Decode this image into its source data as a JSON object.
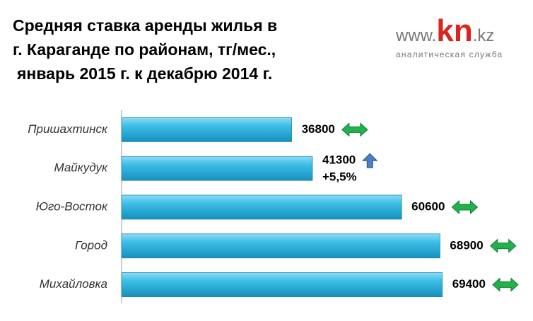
{
  "chart_data": {
    "type": "hbar",
    "title": [
      "Средняя ставка аренды жилья в",
      "г. Караганде по районам, тг/мес.,",
      "январь 2015 г. к декабрю 2014 г."
    ],
    "categories": [
      "Пришахтинск",
      "Майкудук",
      "Юго-Восток",
      "Город",
      "Михайловка"
    ],
    "values": [
      36800,
      41300,
      60600,
      68900,
      69400
    ],
    "change_labels": [
      null,
      "+5,5%",
      null,
      null,
      null
    ],
    "trends": [
      "flat",
      "up",
      "flat",
      "flat",
      "flat"
    ],
    "color": "#2fb0dc",
    "xlim": [
      0,
      80000
    ]
  },
  "logo": {
    "prefix": "www.",
    "brand": "kn",
    "suffix": ".kz",
    "tagline": "аналитическая служба"
  }
}
